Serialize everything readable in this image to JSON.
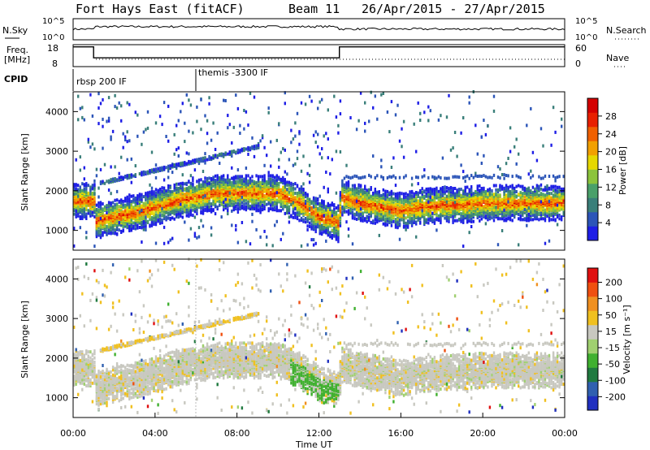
{
  "header": {
    "station": "Fort Hays East (fitACF)",
    "beam": "Beam 11",
    "date_range": "26/Apr/2015 - 27/Apr/2015"
  },
  "top_panels": {
    "nsky_label": "N.Sky",
    "nsky_ticks": [
      "10^5",
      "10^0"
    ],
    "nsearch_label": "N.Search",
    "nsearch_ticks": [
      "10^5",
      "10^0"
    ],
    "freq_label": "Freq.",
    "freq_unit": "[MHz]",
    "freq_ticks": [
      "18",
      "8"
    ],
    "nave_label": "Nave",
    "nave_ticks": [
      "60",
      "0"
    ],
    "cpid_label": "CPID",
    "cpid_segments": [
      {
        "label": "rbsp 200 IF",
        "start_hour": 0
      },
      {
        "label": "themis -3300 IF",
        "start_hour": 6
      }
    ],
    "freq_profile": [
      [
        0,
        17
      ],
      [
        1,
        17
      ],
      [
        1,
        12
      ],
      [
        13,
        12
      ],
      [
        13,
        17
      ],
      [
        24,
        17
      ]
    ]
  },
  "chart_data": [
    {
      "type": "heatmap",
      "title": "Power",
      "xlabel": "",
      "ylabel": "Slant Range [km]",
      "xlim": [
        0,
        24
      ],
      "ylim": [
        500,
        4500
      ],
      "yticks": [
        "1000",
        "2000",
        "3000",
        "4000"
      ],
      "colorbar_label": "Power [dB]",
      "colorbar_ticks": [
        "4",
        "8",
        "12",
        "16",
        "20",
        "24",
        "28"
      ],
      "colorbar_colors": [
        "#1e1ee6",
        "#2c55b8",
        "#3a7f7a",
        "#4aa06a",
        "#8cc43c",
        "#e6d800",
        "#f2a000",
        "#f06000",
        "#e82000",
        "#d40000"
      ],
      "ridge_km": [
        [
          0,
          1750
        ],
        [
          1,
          1750
        ],
        [
          1.1,
          1250
        ],
        [
          2,
          1350
        ],
        [
          3,
          1450
        ],
        [
          4,
          1600
        ],
        [
          5,
          1750
        ],
        [
          6,
          1850
        ],
        [
          7,
          1950
        ],
        [
          8,
          1950
        ],
        [
          9,
          1950
        ],
        [
          10,
          1950
        ],
        [
          11,
          1700
        ],
        [
          12,
          1350
        ],
        [
          12.95,
          1200
        ],
        [
          13.05,
          1850
        ],
        [
          14,
          1700
        ],
        [
          15,
          1600
        ],
        [
          16,
          1500
        ],
        [
          17,
          1600
        ],
        [
          18,
          1650
        ],
        [
          19,
          1650
        ],
        [
          20,
          1700
        ],
        [
          21,
          1700
        ],
        [
          22,
          1700
        ],
        [
          23,
          1700
        ],
        [
          24,
          1700
        ]
      ]
    },
    {
      "type": "heatmap",
      "title": "Velocity",
      "xlabel": "Time UT",
      "ylabel": "Slant Range [km]",
      "xlim": [
        0,
        24
      ],
      "ylim": [
        500,
        4500
      ],
      "yticks": [
        "1000",
        "2000",
        "3000",
        "4000"
      ],
      "xticks": [
        "00:00",
        "04:00",
        "08:00",
        "12:00",
        "16:00",
        "20:00",
        "00:00"
      ],
      "colorbar_label": "Velocity [m s⁻¹]",
      "colorbar_ticks": [
        "200",
        "100",
        "50",
        "15",
        "-15",
        "-50",
        "-100",
        "-200"
      ],
      "colorbar_colors": [
        "#2030c0",
        "#3060b0",
        "#207a40",
        "#40b030",
        "#a0d070",
        "#c8c8c0",
        "#f0c020",
        "#f09020",
        "#f05010",
        "#e01010"
      ],
      "ridge_km": [
        [
          0,
          1750
        ],
        [
          1,
          1750
        ],
        [
          1.1,
          1250
        ],
        [
          2,
          1350
        ],
        [
          3,
          1450
        ],
        [
          4,
          1600
        ],
        [
          5,
          1750
        ],
        [
          6,
          1850
        ],
        [
          7,
          1950
        ],
        [
          8,
          1950
        ],
        [
          9,
          1950
        ],
        [
          10,
          1950
        ],
        [
          11,
          1700
        ],
        [
          12,
          1350
        ],
        [
          12.95,
          1200
        ],
        [
          13.05,
          1850
        ],
        [
          14,
          1700
        ],
        [
          15,
          1600
        ],
        [
          16,
          1500
        ],
        [
          17,
          1600
        ],
        [
          18,
          1650
        ],
        [
          19,
          1650
        ],
        [
          20,
          1700
        ],
        [
          21,
          1700
        ],
        [
          22,
          1700
        ],
        [
          23,
          1700
        ],
        [
          24,
          1700
        ]
      ]
    }
  ]
}
